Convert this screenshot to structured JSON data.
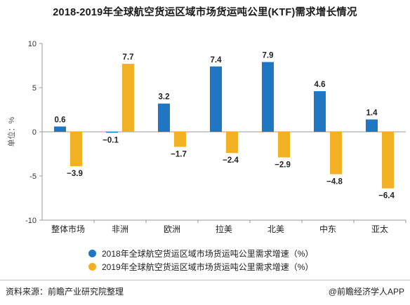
{
  "page": {
    "title": "2018-2019年全球航空货运区域市场货运吨公里(KTF)需求增长情况",
    "source": "资料来源：前瞻产业研究院整理",
    "credit": "@前瞻经济学人APP"
  },
  "colors": {
    "series_2018": "#1f77c4",
    "series_2019": "#f2b023"
  },
  "chart_data": {
    "type": "bar",
    "title": "2018-2019年全球航空货运区域市场货运吨公里(KTF)需求增长情况",
    "xlabel": "",
    "ylabel": "单位：%",
    "ylim": [
      -10,
      10
    ],
    "yticks": [
      -10,
      -5,
      0,
      5,
      10
    ],
    "grid": false,
    "legend_position": "bottom",
    "categories": [
      "整体市场",
      "非洲",
      "欧洲",
      "拉美",
      "北美",
      "中东",
      "亚太"
    ],
    "series": [
      {
        "name": "2018年全球航空货运区域市场货运吨公里需求增速（%）",
        "values": [
          0.6,
          -0.1,
          3.2,
          7.4,
          7.9,
          4.6,
          1.4
        ],
        "color": "#1f77c4"
      },
      {
        "name": "2019年全球航空货运区域市场货运吨公里需求增速（%）",
        "values": [
          -3.9,
          7.7,
          -1.7,
          -2.4,
          -2.9,
          -4.8,
          -6.4
        ],
        "color": "#f2b023"
      }
    ]
  }
}
